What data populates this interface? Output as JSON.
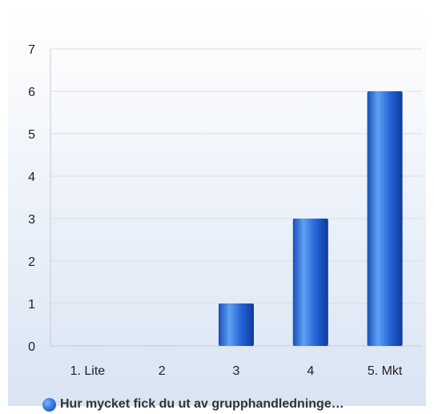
{
  "chart_data": {
    "type": "bar",
    "categories": [
      "1. Lite",
      "2",
      "3",
      "4",
      "5. Mkt"
    ],
    "series": [
      {
        "name": "Hur mycket fick du ut av grupphandledninge…",
        "values": [
          0,
          0,
          1,
          3,
          6
        ]
      }
    ],
    "ylim": [
      0,
      7
    ],
    "yticks": [
      "0",
      "1",
      "2",
      "3",
      "4",
      "5",
      "6",
      "7"
    ],
    "grid": true,
    "legend_position": "bottom",
    "colors": {
      "bar": "#2563d6",
      "bar_dark": "#0d3a9a",
      "bar_light": "#5da0f5"
    }
  },
  "legend": {
    "label": "Hur mycket fick du ut av grupphandledninge…"
  }
}
